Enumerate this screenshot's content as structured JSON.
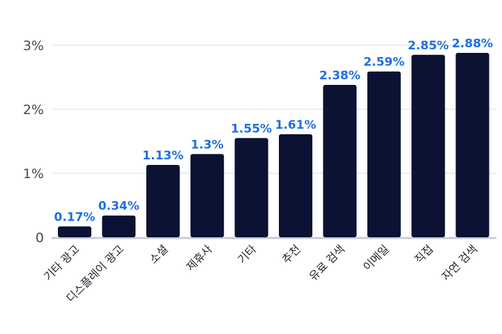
{
  "chart_data": {
    "type": "bar",
    "categories": [
      "기타 광고",
      "디스플레이 광고",
      "소셜",
      "제휴사",
      "기타",
      "추천",
      "유료 검색",
      "이메일",
      "직접",
      "자연 검색"
    ],
    "values": [
      0.17,
      0.34,
      1.13,
      1.3,
      1.55,
      1.61,
      2.38,
      2.59,
      2.85,
      2.88
    ],
    "data_labels": [
      "0.17%",
      "0.34%",
      "1.13%",
      "1.3%",
      "1.55%",
      "1.61%",
      "2.38%",
      "2.59%",
      "2.85%",
      "2.88%"
    ],
    "y_ticks": [
      {
        "value": 0,
        "label": "0"
      },
      {
        "value": 1,
        "label": "1%"
      },
      {
        "value": 2,
        "label": "2%"
      },
      {
        "value": 3,
        "label": "3%"
      }
    ],
    "title": "",
    "xlabel": "",
    "ylabel": "",
    "ylim": [
      0,
      3
    ],
    "grid": true,
    "legend": "none",
    "colors": {
      "bar": "#0b1233",
      "data_label": "#1f6fe0",
      "grid": "#d6dbe3"
    }
  }
}
